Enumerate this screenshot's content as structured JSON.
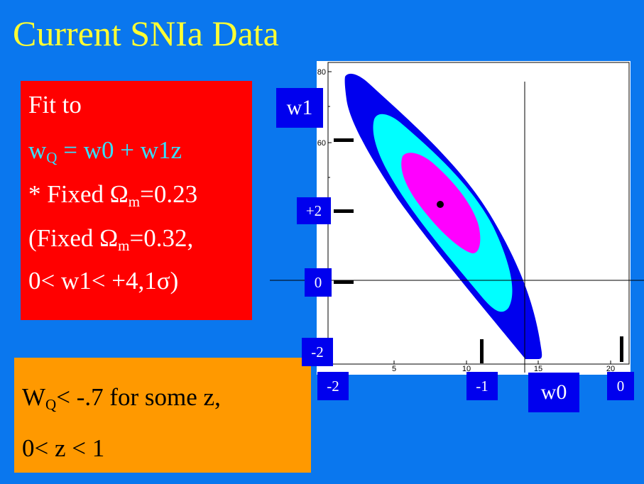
{
  "title": "Current SNIa Data",
  "fit_box": {
    "line1": "Fit to",
    "eq_w": "w",
    "eq_sub": "Q",
    "eq_rest": " = w0 + w1z",
    "fixed1_pre": "* Fixed ",
    "fixed1_omega": "Ω",
    "fixed1_sub": "m",
    "fixed1_val": "=0.23",
    "fixed2_pre": "(Fixed ",
    "fixed2_omega": "Ω",
    "fixed2_sub": "m",
    "fixed2_val": "=0.32,",
    "range_pre": "0< w1< +4,1",
    "range_sigma": "σ",
    "range_post": ")"
  },
  "conclusion": {
    "w": "W",
    "sub": "Q",
    "rest": "< -.7 for  some z,",
    "line2": "0< z < 1"
  },
  "plot": {
    "y_ticks": [
      "80",
      "60"
    ],
    "x_ticks": [
      "5",
      "10",
      "15",
      "20"
    ],
    "axis_label_y": "w1",
    "axis_label_x": "w0",
    "w1_labels": [
      "+2",
      "0",
      "-2"
    ],
    "w0_labels": [
      "-2",
      "-1",
      "0"
    ],
    "contour_colors": [
      "#0000ee",
      "#00ffff",
      "#ff00ff"
    ],
    "best_fit_color": "#000000"
  }
}
